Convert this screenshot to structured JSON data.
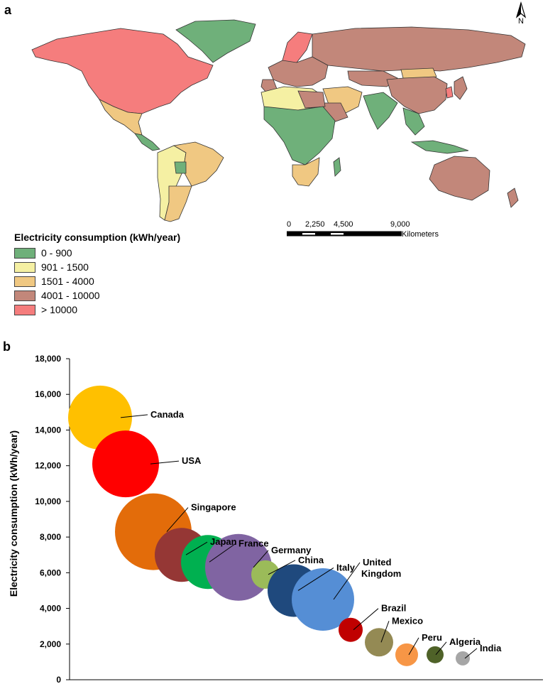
{
  "panel_a_label": "a",
  "panel_b_label": "b",
  "map": {
    "north_label": "N",
    "legend": {
      "title": "Electricity consumption (kWh/year)",
      "items": [
        {
          "label": "0 - 900",
          "color": "#6fb07a"
        },
        {
          "label": "901 - 1500",
          "color": "#f5f0a3"
        },
        {
          "label": "1501 - 4000",
          "color": "#f0c882"
        },
        {
          "label": "4001 - 10000",
          "color": "#c2877a"
        },
        {
          "label": "> 10000",
          "color": "#f57d7d"
        }
      ]
    },
    "scale": {
      "ticks": [
        "0",
        "2,250",
        "4,500",
        "9,000"
      ],
      "unit": "Kilometers"
    },
    "colors": {
      "ocean": "#ffffff",
      "border": "#333333"
    }
  },
  "chart_data": {
    "type": "scatter",
    "subtype": "bubble",
    "ylabel": "Electricity consumption (kWh/year)",
    "ylim": [
      0,
      18000
    ],
    "yticks": [
      "0",
      "2,000",
      "4,000",
      "6,000",
      "8,000",
      "10,000",
      "12,000",
      "14,000",
      "16,000",
      "18,000"
    ],
    "points": [
      {
        "label": "Canada",
        "y": 14700,
        "color": "#ffc000"
      },
      {
        "label": "USA",
        "y": 12100,
        "color": "#ff0000"
      },
      {
        "label": "Singapore",
        "y": 8300,
        "color": "#e36c0a"
      },
      {
        "label": "Japan",
        "y": 7000,
        "color": "#953735"
      },
      {
        "label": "France",
        "y": 6600,
        "color": "#00b050"
      },
      {
        "label": "Germany",
        "y": 6300,
        "color": "#8064a2"
      },
      {
        "label": "China",
        "y": 5900,
        "color": "#9bbb59"
      },
      {
        "label": "Italy",
        "y": 5000,
        "color": "#1f497d"
      },
      {
        "label": "United Kingdom",
        "y": 4500,
        "color": "#558ed5"
      },
      {
        "label": "Brazil",
        "y": 2800,
        "color": "#c00000"
      },
      {
        "label": "Mexico",
        "y": 2100,
        "color": "#948a54"
      },
      {
        "label": "Peru",
        "y": 1400,
        "color": "#f79646"
      },
      {
        "label": "Algeria",
        "y": 1400,
        "color": "#4f6228"
      },
      {
        "label": "India",
        "y": 1200,
        "color": "#a6a6a6"
      }
    ]
  }
}
